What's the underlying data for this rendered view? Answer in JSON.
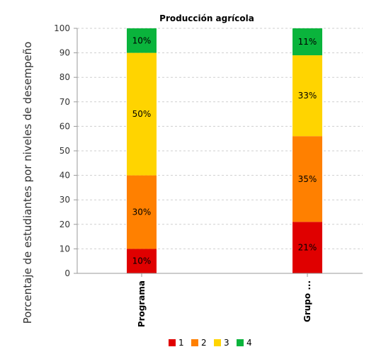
{
  "chart_data": {
    "type": "bar",
    "stacked": true,
    "title": "Producción agrícola",
    "ylabel": "Porcentaje de estudiantes por niveles de desempeño",
    "xlabel": "",
    "ylim": [
      0,
      100
    ],
    "yticks": [
      0,
      10,
      20,
      30,
      40,
      50,
      60,
      70,
      80,
      90,
      100
    ],
    "grid": "horizontal dashed",
    "categories": [
      "Programa",
      "Grupo ..."
    ],
    "series": [
      {
        "name": "1",
        "values": [
          10,
          21
        ],
        "labels": [
          "10%",
          "21%"
        ]
      },
      {
        "name": "2",
        "values": [
          30,
          35
        ],
        "labels": [
          "30%",
          "35%"
        ]
      },
      {
        "name": "3",
        "values": [
          50,
          33
        ],
        "labels": [
          "50%",
          "33%"
        ]
      },
      {
        "name": "4",
        "values": [
          10,
          11
        ],
        "labels": [
          "10%",
          "11%"
        ]
      }
    ],
    "legend_position": "bottom"
  },
  "colors": {
    "series": [
      "#e00000",
      "#ff8000",
      "#ffd400",
      "#0ab43c"
    ],
    "grid": "#cfcfcf",
    "axis": "#999999",
    "text": "#000000"
  }
}
